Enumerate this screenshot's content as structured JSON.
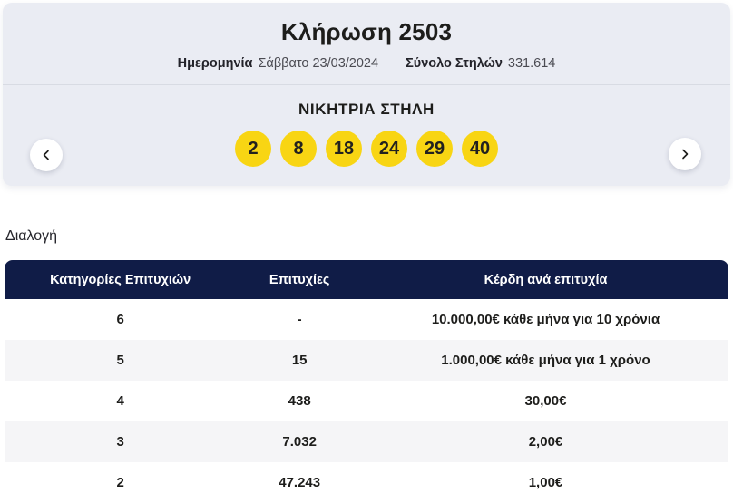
{
  "colors": {
    "card_background": "#eaecf3",
    "ball_yellow": "#f8d513",
    "header_navy": "#101c47",
    "row_stripe": "#f5f5f7"
  },
  "draw": {
    "title": "Κλήρωση 2503",
    "date_label": "Ημερομηνία",
    "date_value": "Σάββατο 23/03/2024",
    "columns_label": "Σύνολο Στηλών",
    "columns_value": "331.614"
  },
  "winning": {
    "heading": "ΝΙΚΗΤΡΙΑ ΣΤΗΛΗ",
    "numbers": [
      "2",
      "8",
      "18",
      "24",
      "29",
      "40"
    ],
    "prev_icon": "chevron-left-icon",
    "next_icon": "chevron-right-icon"
  },
  "section": {
    "label": "Διαλογή"
  },
  "table": {
    "headers": [
      "Κατηγορίες Επιτυχιών",
      "Επιτυχίες",
      "Κέρδη ανά επιτυχία"
    ],
    "rows": [
      [
        "6",
        "-",
        "10.000,00€ κάθε μήνα για 10 χρόνια"
      ],
      [
        "5",
        "15",
        "1.000,00€ κάθε μήνα για 1 χρόνο"
      ],
      [
        "4",
        "438",
        "30,00€"
      ],
      [
        "3",
        "7.032",
        "2,00€"
      ],
      [
        "2",
        "47.243",
        "1,00€"
      ]
    ]
  }
}
